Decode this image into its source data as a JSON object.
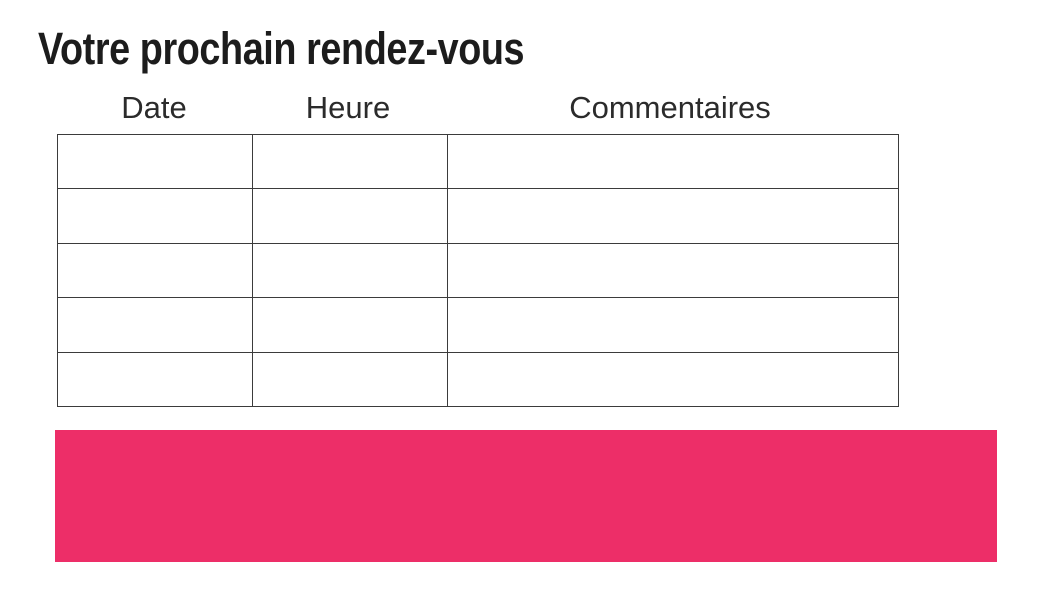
{
  "title": "Votre prochain rendez-vous",
  "table": {
    "headers": [
      "Date",
      "Heure",
      "Commentaires"
    ],
    "rows": [
      [
        "",
        "",
        ""
      ],
      [
        "",
        "",
        ""
      ],
      [
        "",
        "",
        ""
      ],
      [
        "",
        "",
        ""
      ],
      [
        "",
        "",
        ""
      ]
    ]
  },
  "colors": {
    "banner_pink": "#ED2E68",
    "table_border": "#3B3B3B",
    "title_text": "#1C1C1C",
    "header_text": "#2B2B2B",
    "page_background": "#FFFFFF"
  }
}
